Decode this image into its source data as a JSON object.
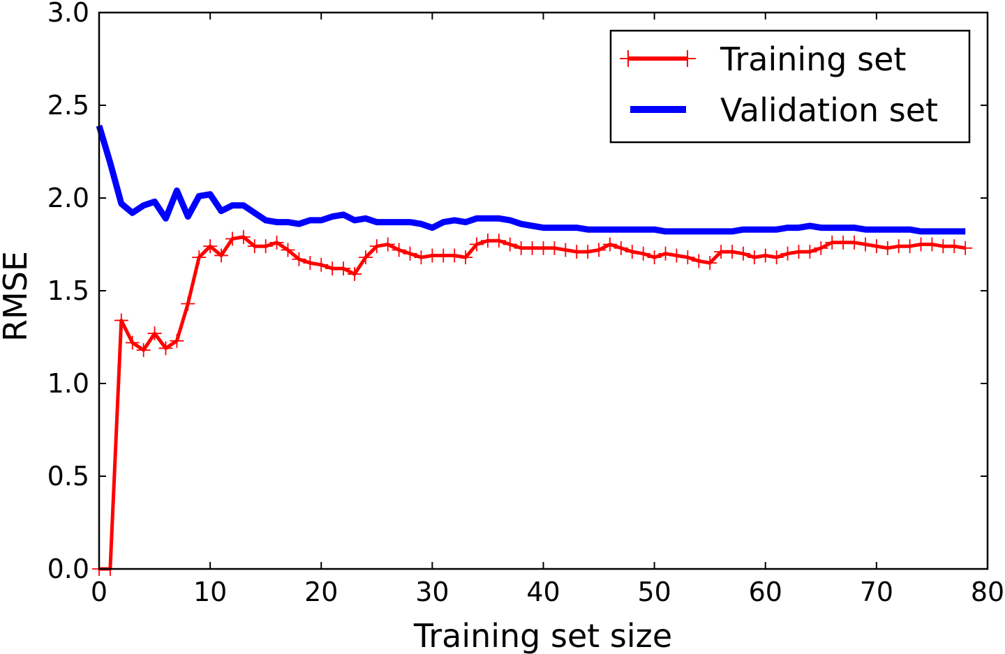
{
  "chart_data": {
    "type": "line",
    "xlabel": "Training set size",
    "ylabel": "RMSE",
    "xlim": [
      0,
      80
    ],
    "ylim": [
      0,
      3.0
    ],
    "xticks": [
      "0",
      "10",
      "20",
      "30",
      "40",
      "50",
      "60",
      "70",
      "80"
    ],
    "yticks": [
      "0.0",
      "0.5",
      "1.0",
      "1.5",
      "2.0",
      "2.5",
      "3.0"
    ],
    "grid": false,
    "legend_position": "top-right",
    "series": [
      {
        "name": "Training set",
        "color": "#ff0000",
        "marker": "+",
        "x": [
          0,
          1,
          2,
          3,
          4,
          5,
          6,
          7,
          8,
          9,
          10,
          11,
          12,
          13,
          14,
          15,
          16,
          17,
          18,
          19,
          20,
          21,
          22,
          23,
          24,
          25,
          26,
          27,
          28,
          29,
          30,
          31,
          32,
          33,
          34,
          35,
          36,
          37,
          38,
          39,
          40,
          41,
          42,
          43,
          44,
          45,
          46,
          47,
          48,
          49,
          50,
          51,
          52,
          53,
          54,
          55,
          56,
          57,
          58,
          59,
          60,
          61,
          62,
          63,
          64,
          65,
          66,
          67,
          68,
          69,
          70,
          71,
          72,
          73,
          74,
          75,
          76,
          77,
          78
        ],
        "values": [
          0.0,
          0.0,
          1.34,
          1.22,
          1.18,
          1.27,
          1.19,
          1.23,
          1.43,
          1.68,
          1.74,
          1.69,
          1.78,
          1.79,
          1.74,
          1.74,
          1.76,
          1.72,
          1.67,
          1.65,
          1.64,
          1.62,
          1.62,
          1.59,
          1.68,
          1.74,
          1.75,
          1.72,
          1.7,
          1.68,
          1.69,
          1.69,
          1.69,
          1.68,
          1.75,
          1.77,
          1.77,
          1.75,
          1.73,
          1.73,
          1.73,
          1.73,
          1.72,
          1.71,
          1.71,
          1.72,
          1.75,
          1.73,
          1.71,
          1.7,
          1.68,
          1.7,
          1.69,
          1.68,
          1.66,
          1.65,
          1.71,
          1.71,
          1.7,
          1.68,
          1.69,
          1.68,
          1.7,
          1.71,
          1.71,
          1.73,
          1.76,
          1.76,
          1.76,
          1.75,
          1.74,
          1.73,
          1.74,
          1.74,
          1.75,
          1.75,
          1.74,
          1.74,
          1.73
        ]
      },
      {
        "name": "Validation set",
        "color": "#0000ff",
        "marker": "none",
        "x": [
          0,
          1,
          2,
          3,
          4,
          5,
          6,
          7,
          8,
          9,
          10,
          11,
          12,
          13,
          14,
          15,
          16,
          17,
          18,
          19,
          20,
          21,
          22,
          23,
          24,
          25,
          26,
          27,
          28,
          29,
          30,
          31,
          32,
          33,
          34,
          35,
          36,
          37,
          38,
          39,
          40,
          41,
          42,
          43,
          44,
          45,
          46,
          47,
          48,
          49,
          50,
          51,
          52,
          53,
          54,
          55,
          56,
          57,
          58,
          59,
          60,
          61,
          62,
          63,
          64,
          65,
          66,
          67,
          68,
          69,
          70,
          71,
          72,
          73,
          74,
          75,
          76,
          77,
          78
        ],
        "values": [
          2.39,
          2.19,
          1.97,
          1.92,
          1.96,
          1.98,
          1.89,
          2.04,
          1.9,
          2.01,
          2.02,
          1.93,
          1.96,
          1.96,
          1.92,
          1.88,
          1.87,
          1.87,
          1.86,
          1.88,
          1.88,
          1.9,
          1.91,
          1.88,
          1.89,
          1.87,
          1.87,
          1.87,
          1.87,
          1.86,
          1.84,
          1.87,
          1.88,
          1.87,
          1.89,
          1.89,
          1.89,
          1.88,
          1.86,
          1.85,
          1.84,
          1.84,
          1.84,
          1.84,
          1.83,
          1.83,
          1.83,
          1.83,
          1.83,
          1.83,
          1.83,
          1.82,
          1.82,
          1.82,
          1.82,
          1.82,
          1.82,
          1.82,
          1.83,
          1.83,
          1.83,
          1.83,
          1.84,
          1.84,
          1.85,
          1.84,
          1.84,
          1.84,
          1.84,
          1.83,
          1.83,
          1.83,
          1.83,
          1.83,
          1.82,
          1.82,
          1.82,
          1.82,
          1.82
        ]
      }
    ]
  }
}
